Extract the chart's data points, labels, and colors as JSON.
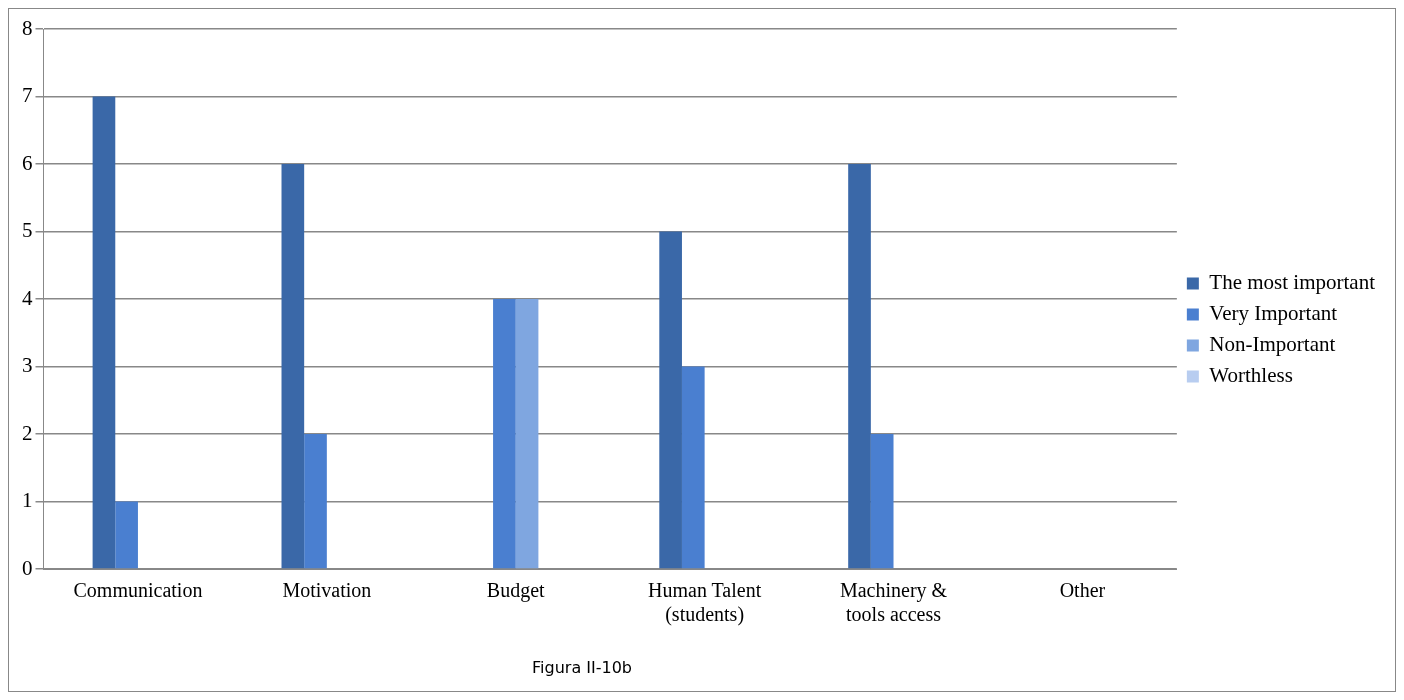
{
  "chart_data": {
    "type": "bar",
    "categories": [
      "Communication",
      "Motivation",
      "Budget",
      "Human Talent (students)",
      "Machinery & tools access",
      "Other"
    ],
    "series": [
      {
        "name": "The most important",
        "color": "#3a68a8",
        "values": [
          7,
          6,
          null,
          5,
          6,
          null
        ]
      },
      {
        "name": "Very Important",
        "color": "#4a7fd0",
        "values": [
          1,
          2,
          4,
          3,
          2,
          null
        ]
      },
      {
        "name": "Non-Important",
        "color": "#7fa6e0",
        "values": [
          null,
          null,
          4,
          null,
          null,
          null
        ]
      },
      {
        "name": "Worthless",
        "color": "#b8cdf0",
        "values": [
          null,
          null,
          null,
          null,
          null,
          null
        ]
      }
    ],
    "ylim": [
      0,
      8
    ],
    "yticks": [
      0,
      1,
      2,
      3,
      4,
      5,
      6,
      7,
      8
    ],
    "grid": "y",
    "legend": "right",
    "annotations": [
      "Figura II-10b"
    ]
  }
}
